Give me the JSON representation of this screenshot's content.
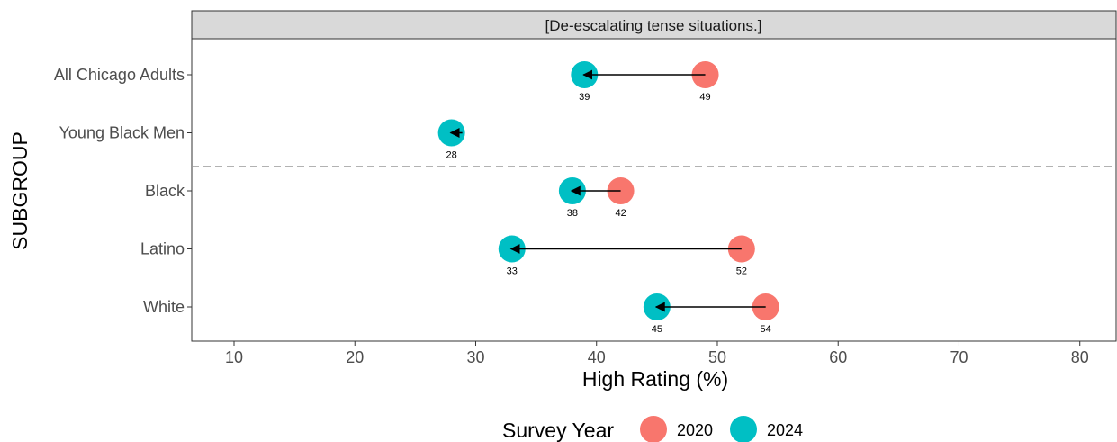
{
  "chart_data": {
    "type": "dumbbell",
    "facet_title": "[De-escalating tense situations.]",
    "xlabel": "High Rating (%)",
    "ylabel": "SUBGROUP",
    "xlim": [
      6.5,
      83
    ],
    "x_ticks": [
      10,
      20,
      30,
      40,
      50,
      60,
      70,
      80
    ],
    "grid": false,
    "categories": [
      "All Chicago Adults",
      "Young Black Men",
      "Black",
      "Latino",
      "White"
    ],
    "series": [
      {
        "name": "2020",
        "color": "#F8766D",
        "values": [
          49,
          null,
          42,
          52,
          54
        ]
      },
      {
        "name": "2024",
        "color": "#00BFC4",
        "values": [
          39,
          28,
          38,
          33,
          45
        ]
      }
    ],
    "arrows": "from 2020 to 2024",
    "separator_after_category": "Young Black Men",
    "legend": {
      "title": "Survey Year",
      "position": "bottom",
      "items": [
        "2020",
        "2024"
      ]
    }
  }
}
